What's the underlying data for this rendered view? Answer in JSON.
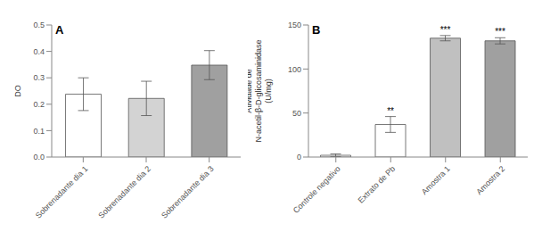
{
  "chart_data": [
    {
      "type": "bar",
      "title": "A",
      "categories": [
        "Sobrenadante dia 1",
        "Sobrenadante dia 2",
        "Sobrenadante dia 3"
      ],
      "values": [
        0.238,
        0.222,
        0.348
      ],
      "errors": [
        0.062,
        0.065,
        0.055
      ],
      "colors": [
        "#ffffff",
        "#d3d3d3",
        "#a0a0a0"
      ],
      "ylabel": "DO",
      "ylim": [
        0,
        0.5
      ],
      "yticks": [
        {
          "value": 0,
          "label": "0.0"
        },
        0.1,
        0.2,
        0.3,
        0.4,
        0.5
      ]
    },
    {
      "type": "bar",
      "title": "B",
      "categories": [
        "Controle negativo",
        "Extrato de Pb",
        "Amostra 1",
        "Amostra 2"
      ],
      "values": [
        2.0,
        37.0,
        135.0,
        132.0
      ],
      "errors": [
        1.5,
        9.0,
        3.0,
        3.5
      ],
      "colors": [
        "#ffffff",
        "#ffffff",
        "#c0c0c0",
        "#a0a0a0"
      ],
      "ylabel": "Atividade de\nN-acetil-β-D-glicosaminidase\n(U/mg)",
      "ylim": [
        0,
        150
      ],
      "yticks": [
        0,
        50,
        100,
        150
      ],
      "annotations": [
        null,
        "**",
        "***",
        "***"
      ]
    }
  ]
}
